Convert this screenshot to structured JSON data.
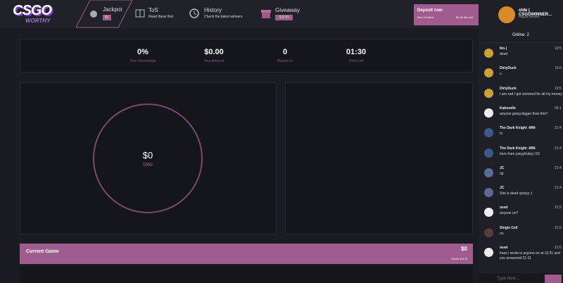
{
  "header": {
    "logo_top": "CSGO",
    "logo_bottom": "WORTHY",
    "nav": [
      {
        "title": "Jackpot",
        "subtitle": "$0"
      },
      {
        "title": "ToS",
        "subtitle": "Read these first"
      },
      {
        "title": "History",
        "subtitle": "Check the latest winners"
      },
      {
        "title": "Giveaway",
        "subtitle": "SOON"
      }
    ],
    "deposit": {
      "title": "Deposit now",
      "max": "Max 15 skins",
      "min": "$1.00 Min bet"
    },
    "user": {
      "name": "olde | CSGOWINNER...",
      "rank": "Regular Member"
    }
  },
  "stats": [
    {
      "value": "0%",
      "label": "Your Percentage"
    },
    {
      "value": "$0.00",
      "label": "Your Amount"
    },
    {
      "value": "0",
      "label": "Players In"
    },
    {
      "value": "01:30",
      "label": "Time Left"
    }
  ],
  "pot": {
    "amount": "$0",
    "items": "0/60"
  },
  "current_game": {
    "title": "Current Game",
    "amount": "$0",
    "game": "Game #1176"
  },
  "chat": {
    "online": "Online: 2",
    "placeholder": "Type here...",
    "messages": [
      {
        "name": "Iko.|",
        "text": "dead",
        "time": "19:5"
      },
      {
        "name": "DirtyDuck",
        "text": "u",
        "time": "19:5"
      },
      {
        "name": "DirtyDuck",
        "text": "I are sad I got scmmed for all my money",
        "time": "19:5"
      },
      {
        "name": "Kaboodle",
        "text": "anyone going bigger than this?",
        "time": "09:1"
      },
      {
        "name": "The Dark Knight -MM-",
        "text": "hi",
        "time": "21:4"
      },
      {
        "name": "The Dark Knight -MM-",
        "text": "here from juicyyfruityy XD",
        "time": "21:4"
      },
      {
        "name": "JC",
        "text": "rip",
        "time": "21:4"
      },
      {
        "name": "JC",
        "text": "Site is dead sprayy :(",
        "time": "21:4"
      },
      {
        "name": "newt",
        "text": "anyone on?",
        "time": "21:5"
      },
      {
        "name": "Single Cell",
        "text": "no",
        "time": "21:5"
      },
      {
        "name": "newt",
        "text": "lmao i wrote is anyone on at 12:31 and you answered 21:31",
        "time": "21:5"
      }
    ]
  }
}
